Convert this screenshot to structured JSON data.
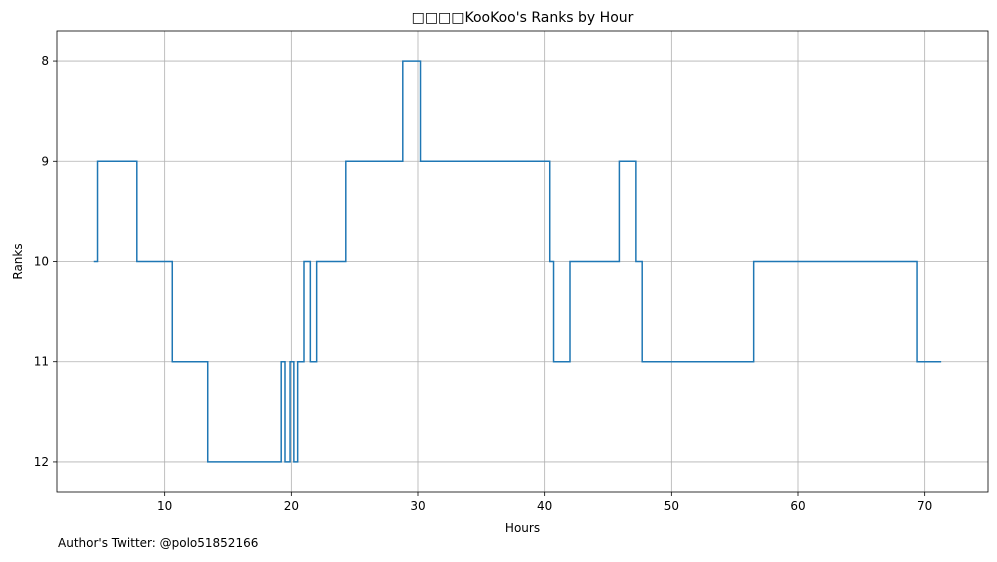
{
  "chart_data": {
    "type": "line",
    "step": true,
    "title": "□□□□KooKoo's Ranks by Hour",
    "xlabel": "Hours",
    "ylabel": "Ranks",
    "xlim": [
      1.5,
      75
    ],
    "ylim": [
      12.3,
      7.7
    ],
    "y_inverted": true,
    "xticks": [
      10,
      20,
      30,
      40,
      50,
      60,
      70
    ],
    "yticks": [
      8,
      9,
      10,
      11,
      12
    ],
    "grid": true,
    "color": "#1f77b4",
    "points": [
      [
        4.4,
        10
      ],
      [
        4.7,
        9
      ],
      [
        7.8,
        10
      ],
      [
        10.6,
        11
      ],
      [
        13.4,
        12
      ],
      [
        19.2,
        11
      ],
      [
        19.5,
        12
      ],
      [
        19.9,
        11
      ],
      [
        20.2,
        12
      ],
      [
        20.5,
        11
      ],
      [
        21.0,
        10
      ],
      [
        21.5,
        11
      ],
      [
        22.0,
        10
      ],
      [
        24.3,
        9
      ],
      [
        28.8,
        8
      ],
      [
        30.2,
        9
      ],
      [
        40.4,
        10
      ],
      [
        40.7,
        11
      ],
      [
        42.0,
        10
      ],
      [
        45.9,
        9
      ],
      [
        47.2,
        10
      ],
      [
        47.7,
        11
      ],
      [
        56.5,
        10
      ],
      [
        69.4,
        11
      ],
      [
        71.3,
        11
      ]
    ]
  },
  "footer": "Author's Twitter: @polo51852166"
}
